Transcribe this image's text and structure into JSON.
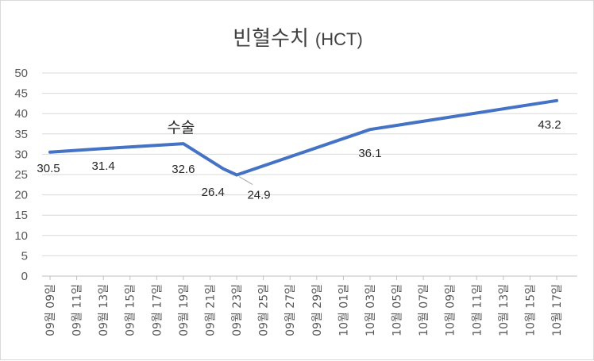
{
  "chart_data": {
    "type": "line",
    "title": "빈혈수치",
    "subtitle": "(HCT)",
    "xlabel": "",
    "ylabel": "",
    "ylim": [
      0,
      50
    ],
    "yticks": [
      "0",
      "5",
      "10",
      "15",
      "20",
      "25",
      "30",
      "35",
      "40",
      "45",
      "50"
    ],
    "grid": true,
    "legend": "none",
    "categories": [
      "09월 09일",
      "09월 11일",
      "09월 13일",
      "09월 15일",
      "09월 17일",
      "09월 19일",
      "09월 21일",
      "09월 23일",
      "09월 25일",
      "09월 27일",
      "09월 29일",
      "10월 01일",
      "10월 03일",
      "10월 05일",
      "10월 07일",
      "10월 09일",
      "10월 11일",
      "10월 13일",
      "10월 15일",
      "10월 17일"
    ],
    "series": [
      {
        "points": [
          {
            "x": "09월 09일",
            "y": 30.5,
            "label": "30.5"
          },
          {
            "x": "09월 13일",
            "y": 31.4,
            "label": "31.4"
          },
          {
            "x": "09월 19일",
            "y": 32.6,
            "label": "32.6"
          },
          {
            "x": "09월 22일",
            "y": 26.4,
            "label": "26.4"
          },
          {
            "x": "09월 23일",
            "y": 24.9,
            "label": "24.9"
          },
          {
            "x": "10월 03일",
            "y": 36.1,
            "label": "36.1"
          },
          {
            "x": "10월 17일",
            "y": 43.2,
            "label": "43.2"
          }
        ]
      }
    ],
    "annotations": [
      {
        "text": "수술",
        "x": "09월 19일"
      }
    ],
    "colors": {
      "line": "#4472c4",
      "grid": "#d9d9d9",
      "text": "#595959"
    }
  }
}
